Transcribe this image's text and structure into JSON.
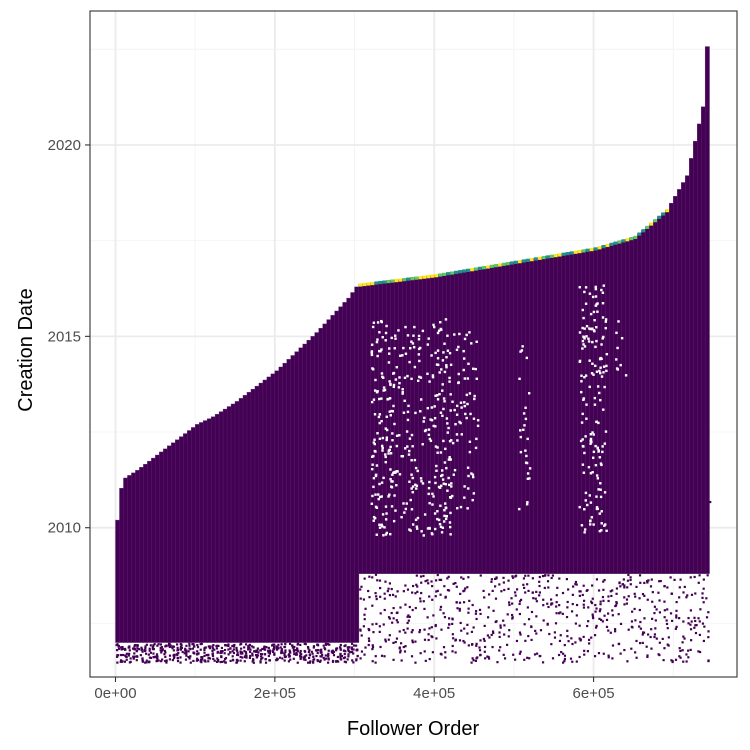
{
  "chart_data": {
    "type": "heatmap",
    "title": "",
    "xlabel": "Follower Order",
    "ylabel": "Creation Date",
    "xlim": [
      -32000,
      780000
    ],
    "ylim": [
      2006.1,
      2023.5
    ],
    "x_ticks": [
      {
        "value": 0,
        "label": "0e+00"
      },
      {
        "value": 200000,
        "label": "2e+05"
      },
      {
        "value": 400000,
        "label": "4e+05"
      },
      {
        "value": 600000,
        "label": "6e+05"
      }
    ],
    "y_ticks": [
      {
        "value": 2010,
        "label": "2010"
      },
      {
        "value": 2015,
        "label": "2015"
      },
      {
        "value": 2020,
        "label": "2020"
      }
    ],
    "grid": true,
    "legend": "none",
    "colors": {
      "fill": "#440154",
      "cell_border": "#5b2d75",
      "edge_high": [
        "#fde725",
        "#5ec962",
        "#21918c"
      ],
      "panel_border": "#333333",
      "grid_major": "#ebebeb",
      "grid_minor": "#f4f4f4"
    },
    "bin_width_x": 5000,
    "upper_envelope": [
      {
        "x": 0,
        "y": 2010.2
      },
      {
        "x": 2500,
        "y": 2010.9
      },
      {
        "x": 10000,
        "y": 2011.3
      },
      {
        "x": 25000,
        "y": 2011.5
      },
      {
        "x": 50000,
        "y": 2011.9
      },
      {
        "x": 75000,
        "y": 2012.3
      },
      {
        "x": 100000,
        "y": 2012.7
      },
      {
        "x": 120000,
        "y": 2012.9
      },
      {
        "x": 150000,
        "y": 2013.3
      },
      {
        "x": 200000,
        "y": 2014.1
      },
      {
        "x": 250000,
        "y": 2015.1
      },
      {
        "x": 290000,
        "y": 2016.0
      },
      {
        "x": 302000,
        "y": 2016.35
      },
      {
        "x": 400000,
        "y": 2016.6
      },
      {
        "x": 500000,
        "y": 2016.95
      },
      {
        "x": 600000,
        "y": 2017.3
      },
      {
        "x": 650000,
        "y": 2017.6
      },
      {
        "x": 690000,
        "y": 2018.3
      },
      {
        "x": 715000,
        "y": 2019.2
      },
      {
        "x": 735000,
        "y": 2021.0
      },
      {
        "x": 742000,
        "y": 2023.2
      }
    ],
    "lower_envelope": [
      {
        "x": 0,
        "y": 2007.0
      },
      {
        "x": 300000,
        "y": 2007.0
      },
      {
        "x": 305000,
        "y": 2008.8
      },
      {
        "x": 745000,
        "y": 2008.8
      }
    ],
    "lower_scatter_range": [
      2006.5,
      2009.0
    ],
    "gap_bands": [
      {
        "x": [
          320000,
          345000
        ],
        "y": [
          2009.6,
          2015.5
        ],
        "density": 0.16
      },
      {
        "x": [
          345000,
          395000
        ],
        "y": [
          2009.8,
          2015.3
        ],
        "density": 0.1
      },
      {
        "x": [
          395000,
          420000
        ],
        "y": [
          2009.8,
          2015.5
        ],
        "density": 0.16
      },
      {
        "x": [
          420000,
          455000
        ],
        "y": [
          2010.5,
          2015.2
        ],
        "density": 0.08
      },
      {
        "x": [
          505000,
          520000
        ],
        "y": [
          2010.5,
          2014.8
        ],
        "density": 0.08
      },
      {
        "x": [
          580000,
          615000
        ],
        "y": [
          2009.9,
          2016.4
        ],
        "density": 0.14
      },
      {
        "x": [
          615000,
          640000
        ],
        "y": [
          2013.5,
          2015.5
        ],
        "density": 0.04
      }
    ],
    "outlier": {
      "x": 745000,
      "y": 2010.7
    }
  }
}
